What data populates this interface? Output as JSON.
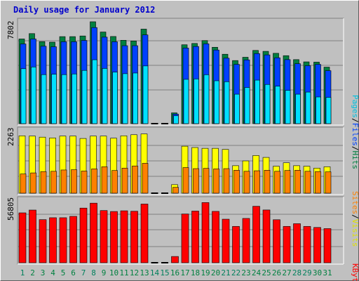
{
  "chart_data": [
    {
      "id": "hits-files-pages",
      "type": "bar",
      "title": "Daily usage for January 2012",
      "categories": [
        "1",
        "2",
        "3",
        "4",
        "5",
        "6",
        "7",
        "8",
        "9",
        "10",
        "11",
        "12",
        "13",
        "14",
        "15",
        "16",
        "17",
        "18",
        "19",
        "20",
        "21",
        "22",
        "23",
        "24",
        "25",
        "26",
        "27",
        "28",
        "29",
        "30",
        "31"
      ],
      "ymax_label": "7802",
      "ylim": [
        0,
        7802
      ],
      "grid": true,
      "series": [
        {
          "name": "Hits",
          "color": "#008040",
          "values": [
            6440,
            6850,
            6240,
            6200,
            6620,
            6620,
            6670,
            7750,
            6970,
            6630,
            6340,
            6290,
            7190,
            0,
            0,
            820,
            6000,
            6100,
            6320,
            5810,
            5280,
            4800,
            5050,
            5570,
            5500,
            5350,
            5170,
            4870,
            4700,
            4680,
            4300
          ]
        },
        {
          "name": "Files",
          "color": "#0040ff",
          "values": [
            6060,
            6440,
            5890,
            5850,
            6230,
            6230,
            6330,
            7310,
            6580,
            6230,
            5930,
            5930,
            6750,
            0,
            0,
            730,
            5750,
            5870,
            6070,
            5600,
            4980,
            4510,
            4850,
            5330,
            5230,
            5010,
            4870,
            4560,
            4410,
            4510,
            4030
          ]
        },
        {
          "name": "Pages",
          "color": "#00e0ff",
          "values": [
            4180,
            4310,
            3730,
            3760,
            3730,
            3780,
            4050,
            4860,
            4200,
            3920,
            3800,
            3850,
            4390,
            0,
            0,
            600,
            3370,
            3400,
            3720,
            3260,
            3190,
            2240,
            2750,
            3310,
            2980,
            2850,
            2530,
            2240,
            2400,
            2030,
            2000
          ]
        }
      ]
    },
    {
      "id": "visits-sites",
      "type": "bar",
      "ymax_label": "2263",
      "ylim": [
        0,
        2263
      ],
      "grid": true,
      "series": [
        {
          "name": "Visits",
          "color": "#ffff00",
          "values": [
            2150,
            2140,
            2100,
            2070,
            2140,
            2140,
            2050,
            2140,
            2140,
            2060,
            2150,
            2190,
            2220,
            0,
            0,
            320,
            1760,
            1710,
            1680,
            1680,
            1640,
            1030,
            1210,
            1410,
            1340,
            1010,
            1140,
            1030,
            1010,
            940,
            990
          ]
        },
        {
          "name": "Sites",
          "color": "#ff8000",
          "values": [
            720,
            760,
            810,
            820,
            870,
            880,
            830,
            910,
            990,
            850,
            940,
            1020,
            1120,
            0,
            0,
            220,
            960,
            920,
            930,
            910,
            920,
            860,
            820,
            840,
            860,
            820,
            850,
            860,
            820,
            810,
            800
          ]
        }
      ]
    },
    {
      "id": "kbytes",
      "type": "bar",
      "ymax_label": "56805",
      "ylim": [
        0,
        56805
      ],
      "grid": true,
      "series": [
        {
          "name": "KBytes",
          "color": "#ff0000",
          "values": [
            46900,
            49540,
            40510,
            42320,
            42320,
            43620,
            51390,
            56030,
            49070,
            48180,
            48840,
            48410,
            55180,
            0,
            0,
            5880,
            45830,
            48560,
            56580,
            48280,
            40940,
            34170,
            41650,
            53090,
            49610,
            40430,
            34170,
            36710,
            34170,
            33180,
            32090
          ]
        }
      ]
    }
  ],
  "day_labels": [
    "1",
    "2",
    "3",
    "4",
    "5",
    "6",
    "7",
    "8",
    "9",
    "10",
    "11",
    "12",
    "13",
    "14",
    "15",
    "16",
    "17",
    "18",
    "19",
    "20",
    "21",
    "22",
    "23",
    "24",
    "25",
    "26",
    "27",
    "28",
    "29",
    "30",
    "31"
  ],
  "weekend_days": [
    1,
    7,
    8,
    14,
    15,
    21,
    22,
    28,
    29
  ],
  "colors": {
    "weekday": "#008040",
    "weekend_day": "#00805c",
    "title": "#0000cc",
    "panel_bg": "#c0c0c0",
    "grid": "#808080"
  },
  "legend_top": {
    "pages": "Pages",
    "sep1": "/",
    "files": "Files",
    "sep2": "/",
    "hits": "Hits"
  },
  "legend_mid": {
    "sites": "Sites",
    "sep": "/",
    "visits": "Visits"
  },
  "legend_bot": {
    "kbytes": "KBytes"
  }
}
